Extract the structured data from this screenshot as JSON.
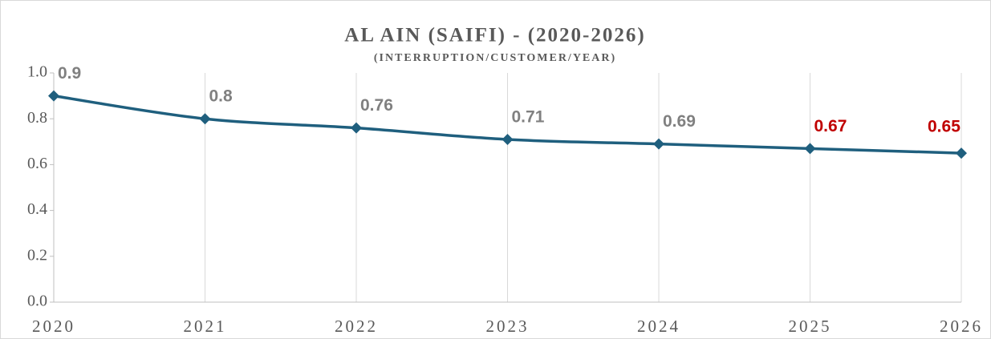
{
  "chart_data": {
    "type": "line",
    "title": "AL AIN (SAIFI) - (2020-2026)",
    "subtitle": "(INTERRUPTION/CUSTOMER/YEAR)",
    "categories": [
      "2020",
      "2021",
      "2022",
      "2023",
      "2024",
      "2025",
      "2026"
    ],
    "series": [
      {
        "name": "SAIFI",
        "color": "#1f5f7e",
        "values": [
          0.9,
          0.8,
          0.76,
          0.71,
          0.69,
          0.67,
          0.65
        ]
      }
    ],
    "value_label_colors": [
      "#808080",
      "#808080",
      "#808080",
      "#808080",
      "#808080",
      "#c00000",
      "#c00000"
    ],
    "ylim": [
      0,
      1.0
    ],
    "yticks": [
      {
        "value": 0,
        "label": "0.0"
      },
      0.2,
      0.4,
      0.6,
      0.8,
      {
        "value": 1.0,
        "label": "1.0"
      }
    ],
    "grid": true
  }
}
